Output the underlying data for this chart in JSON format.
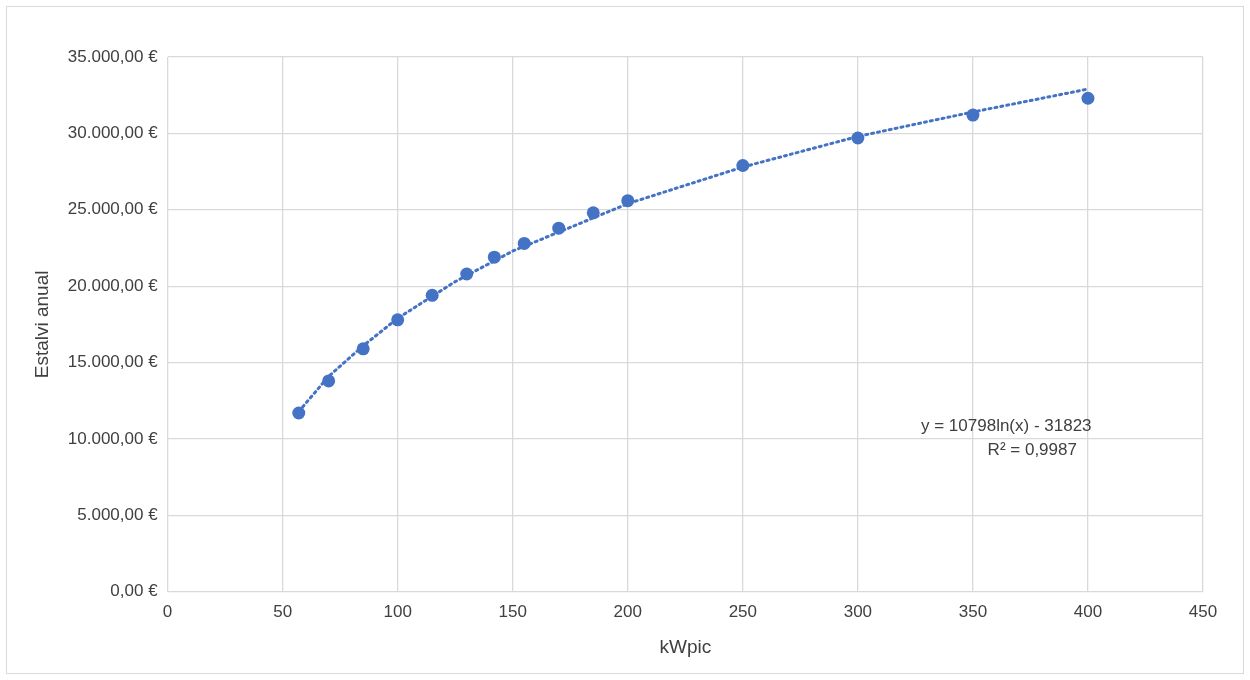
{
  "chart_data": {
    "type": "scatter",
    "xlabel": "kWpic",
    "ylabel": "Estalvi anual",
    "xlim": [
      0,
      450
    ],
    "xticks": [
      0,
      50,
      100,
      150,
      200,
      250,
      300,
      350,
      400,
      450
    ],
    "ylim": [
      0,
      35000
    ],
    "yticks": [
      {
        "value": 0,
        "label": "0,00 €"
      },
      {
        "value": 5000,
        "label": "5.000,00 €"
      },
      {
        "value": 10000,
        "label": "10.000,00 €"
      },
      {
        "value": 15000,
        "label": "15.000,00 €"
      },
      {
        "value": 20000,
        "label": "20.000,00 €"
      },
      {
        "value": 25000,
        "label": "25.000,00 €"
      },
      {
        "value": 30000,
        "label": "30.000,00 €"
      },
      {
        "value": 35000,
        "label": "35.000,00 €"
      }
    ],
    "grid": true,
    "legend": false,
    "marker": "circle",
    "series": [
      {
        "color": "#4472c4",
        "x": [
          57,
          70,
          85,
          100,
          115,
          130,
          142,
          155,
          170,
          185,
          200,
          250,
          300,
          350,
          400
        ],
        "values": [
          11700,
          13800,
          15900,
          17800,
          19400,
          20800,
          21900,
          22800,
          23800,
          24800,
          25600,
          27900,
          29700,
          31200,
          32300
        ]
      },
      {
        "type": "line",
        "color": "#4472c4",
        "line_style": "dotted",
        "marker": "none",
        "x": [
          57,
          70,
          85,
          100,
          125,
          150,
          200,
          250,
          300,
          350,
          400
        ],
        "values": [
          11800,
          14100,
          16100,
          17900,
          20300,
          22300,
          25400,
          27800,
          29800,
          31400,
          32900
        ]
      }
    ],
    "annotations": [
      "y = 10798ln(x) - 31823",
      "R² = 0,9987"
    ]
  }
}
